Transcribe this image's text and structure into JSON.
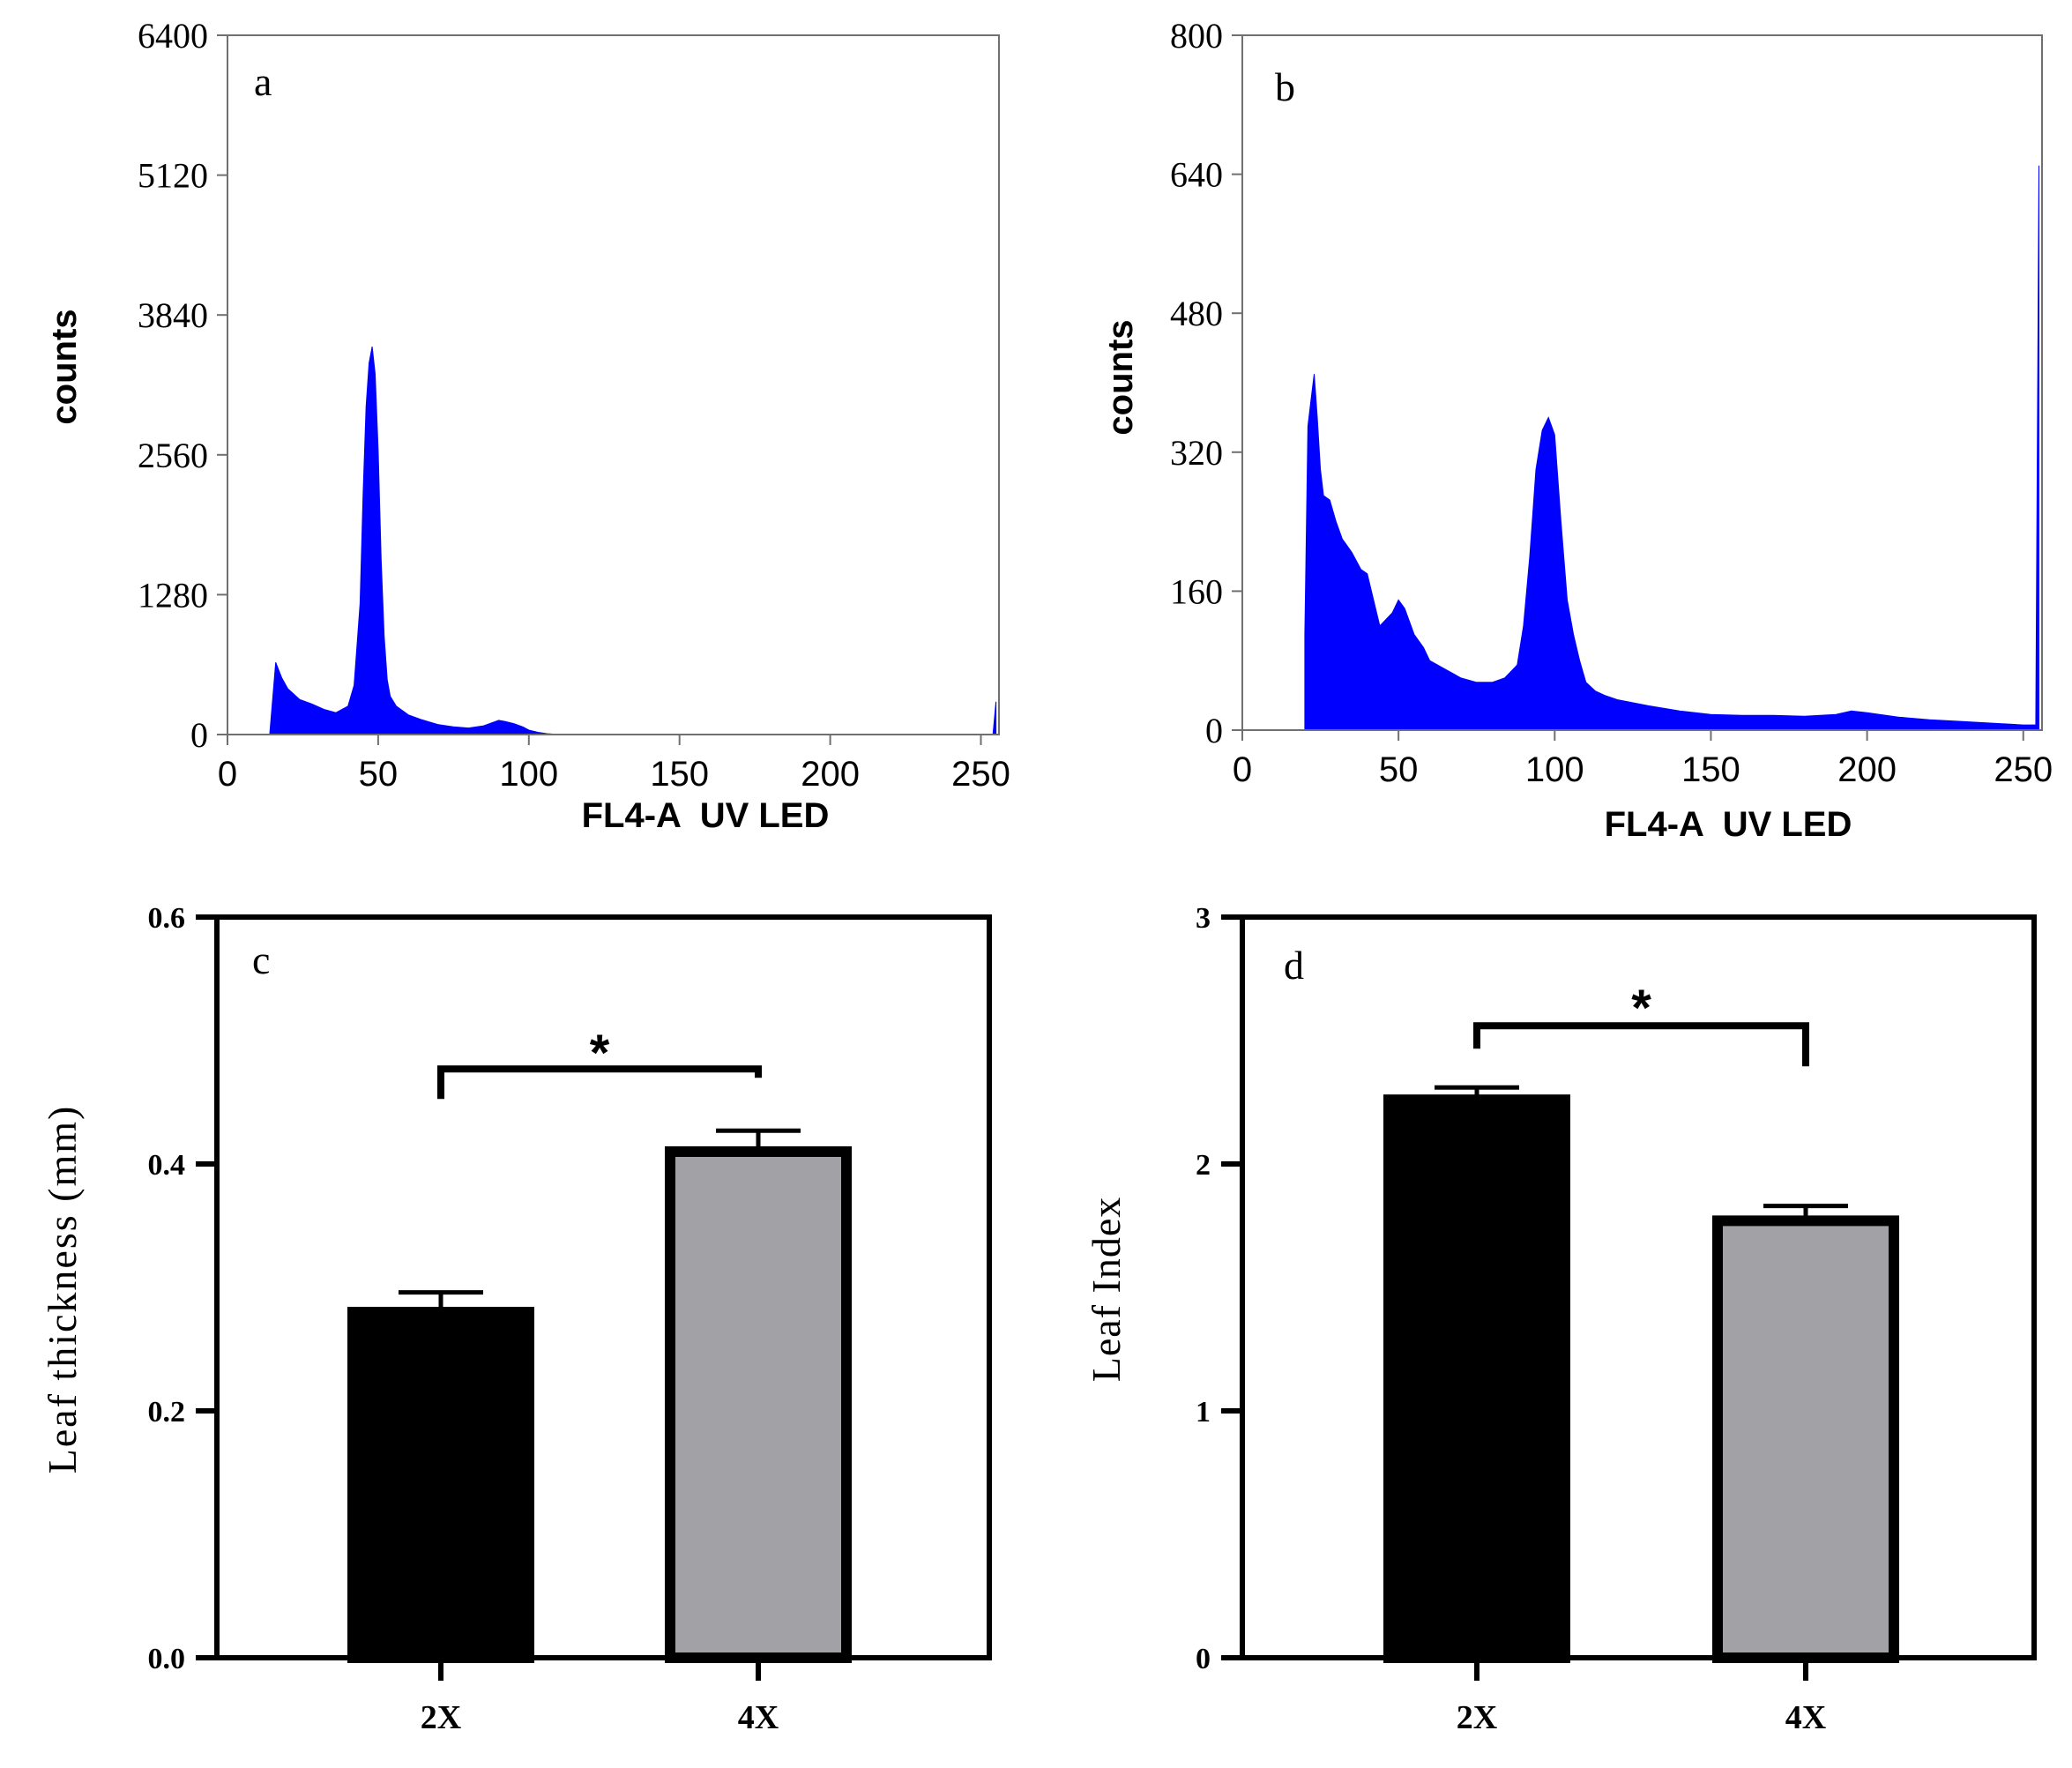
{
  "chart_data": [
    {
      "panel": "a",
      "type": "histogram",
      "title": "",
      "xlabel": "FL4-A  UV LED",
      "ylabel": "counts",
      "xlim": [
        0,
        256
      ],
      "ylim": [
        0,
        6400
      ],
      "xticks": [
        0,
        50,
        100,
        150,
        200,
        250
      ],
      "yticks": [
        0,
        1280,
        2560,
        3840,
        5120,
        6400
      ],
      "color": "#0000ff",
      "x": [
        14,
        16,
        18,
        20,
        24,
        28,
        32,
        36,
        40,
        42,
        44,
        45,
        46,
        47,
        48,
        49,
        50,
        51,
        52,
        53,
        54,
        56,
        58,
        60,
        64,
        70,
        75,
        80,
        85,
        88,
        90,
        92,
        95,
        98,
        100,
        103,
        106,
        110,
        130,
        160,
        200,
        240,
        254,
        255
      ],
      "values": [
        0,
        660,
        520,
        420,
        320,
        280,
        230,
        200,
        260,
        450,
        1200,
        2200,
        3000,
        3400,
        3550,
        3300,
        2600,
        1600,
        900,
        500,
        350,
        260,
        220,
        180,
        140,
        90,
        70,
        60,
        80,
        110,
        130,
        120,
        100,
        70,
        40,
        20,
        8,
        0,
        0,
        0,
        0,
        0,
        0,
        300
      ]
    },
    {
      "panel": "b",
      "type": "histogram",
      "title": "",
      "xlabel": "FL4-A  UV LED",
      "ylabel": "counts",
      "xlim": [
        0,
        256
      ],
      "ylim": [
        0,
        800
      ],
      "xticks": [
        0,
        50,
        100,
        150,
        200,
        250
      ],
      "yticks": [
        0,
        160,
        320,
        480,
        640,
        800
      ],
      "color": "#0000ff",
      "x": [
        20,
        21,
        22,
        23,
        24,
        25,
        26,
        28,
        30,
        32,
        35,
        38,
        40,
        44,
        48,
        50,
        52,
        55,
        58,
        60,
        65,
        70,
        75,
        80,
        84,
        88,
        90,
        92,
        94,
        96,
        98,
        100,
        102,
        104,
        106,
        108,
        110,
        113,
        116,
        120,
        130,
        140,
        150,
        160,
        170,
        180,
        190,
        195,
        200,
        210,
        220,
        230,
        240,
        250,
        254,
        255
      ],
      "values": [
        110,
        350,
        380,
        410,
        360,
        300,
        270,
        265,
        240,
        220,
        205,
        185,
        180,
        120,
        135,
        150,
        140,
        110,
        95,
        80,
        70,
        60,
        55,
        55,
        60,
        75,
        120,
        200,
        300,
        345,
        360,
        340,
        240,
        150,
        110,
        80,
        55,
        45,
        40,
        35,
        28,
        22,
        18,
        17,
        17,
        16,
        18,
        22,
        20,
        15,
        12,
        10,
        8,
        6,
        6,
        650
      ]
    },
    {
      "panel": "c",
      "type": "bar",
      "categories": [
        "2X",
        "4X"
      ],
      "values": [
        0.28,
        0.41
      ],
      "errors": [
        0.016,
        0.017
      ],
      "colors": [
        "#000000",
        "#a2a2a6"
      ],
      "title": "",
      "xlabel": "",
      "ylabel": "Leaf thickness (mm)",
      "ylim": [
        0,
        0.6
      ],
      "yticks": [
        "0.0",
        "0.2",
        "0.4",
        "0.6"
      ],
      "annotation": "*"
    },
    {
      "panel": "d",
      "type": "bar",
      "categories": [
        "2X",
        "4X"
      ],
      "values": [
        2.26,
        1.77
      ],
      "errors": [
        0.05,
        0.06
      ],
      "colors": [
        "#000000",
        "#a2a2a6"
      ],
      "title": "",
      "xlabel": "",
      "ylabel": "Leaf Index",
      "ylim": [
        0,
        3
      ],
      "yticks": [
        "0",
        "1",
        "2",
        "3"
      ],
      "annotation": "*"
    }
  ]
}
